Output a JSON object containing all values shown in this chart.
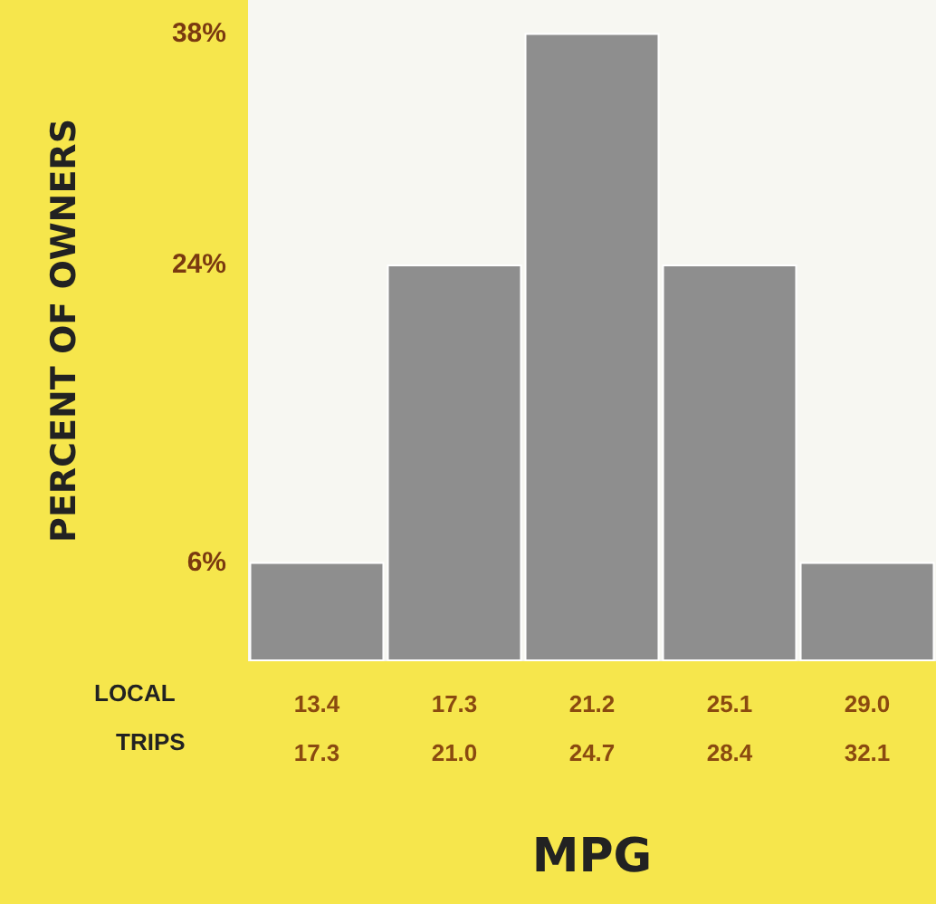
{
  "chart_data": {
    "type": "bar",
    "ylabel": "PERCENT OF OWNERS",
    "xlabel": "MPG",
    "categories": [
      "13.4\n17.3",
      "17.3\n21.0",
      "21.2\n24.7",
      "25.1\n28.4",
      "29.0\n32.1"
    ],
    "values": [
      6,
      24,
      38,
      24,
      6
    ],
    "color": "#8e8e8e",
    "ylim": [
      0,
      40
    ],
    "yticks": [
      {
        "value": 6,
        "label": "6%"
      },
      {
        "value": 24,
        "label": "24%"
      },
      {
        "value": 38,
        "label": "38%"
      }
    ],
    "grid": false,
    "annotations": [
      "LOCAL",
      "TRIPS"
    ]
  }
}
